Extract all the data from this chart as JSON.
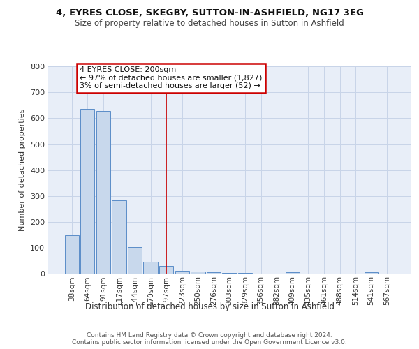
{
  "title1": "4, EYRES CLOSE, SKEGBY, SUTTON-IN-ASHFIELD, NG17 3EG",
  "title2": "Size of property relative to detached houses in Sutton in Ashfield",
  "xlabel": "Distribution of detached houses by size in Sutton in Ashfield",
  "ylabel": "Number of detached properties",
  "footer": "Contains HM Land Registry data © Crown copyright and database right 2024.\nContains public sector information licensed under the Open Government Licence v3.0.",
  "annotation_lines": [
    "4 EYRES CLOSE: 200sqm",
    "← 97% of detached houses are smaller (1,827)",
    "3% of semi-detached houses are larger (52) →"
  ],
  "bar_color": "#c8d8ec",
  "bar_edge_color": "#5b8dc8",
  "grid_color": "#c8d4e8",
  "bg_color": "#e8eef8",
  "vline_color": "#cc0000",
  "annotation_box_edge": "#cc0000",
  "categories": [
    "38sqm",
    "64sqm",
    "91sqm",
    "117sqm",
    "144sqm",
    "170sqm",
    "197sqm",
    "223sqm",
    "250sqm",
    "276sqm",
    "303sqm",
    "329sqm",
    "356sqm",
    "382sqm",
    "409sqm",
    "435sqm",
    "461sqm",
    "488sqm",
    "514sqm",
    "541sqm",
    "567sqm"
  ],
  "values": [
    150,
    635,
    628,
    285,
    103,
    47,
    30,
    12,
    10,
    8,
    5,
    3,
    2,
    0,
    8,
    0,
    0,
    0,
    0,
    8,
    0
  ],
  "ylim": [
    0,
    800
  ],
  "yticks": [
    0,
    100,
    200,
    300,
    400,
    500,
    600,
    700,
    800
  ],
  "vline_cat": "197sqm",
  "title1_fontsize": 9.5,
  "title2_fontsize": 8.5,
  "annotation_fontsize": 8.0,
  "footer_fontsize": 6.5,
  "xlabel_fontsize": 8.5,
  "ylabel_fontsize": 8.0,
  "ytick_fontsize": 8.0,
  "xtick_fontsize": 7.5
}
